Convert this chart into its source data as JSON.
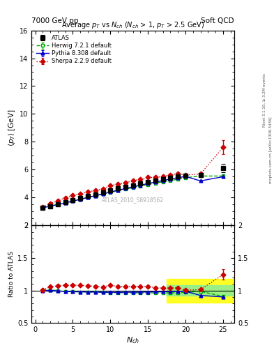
{
  "title_top_left": "7000 GeV pp",
  "title_top_right": "Soft QCD",
  "right_label_top": "Rivet 3.1.10, ≥ 3.2M events",
  "right_label_bottom": "mcplots.cern.ch [arXiv:1306.3436]",
  "plot_title": "Average $p_T$ vs $N_{ch}$ ($N_{ch}$ > 1, $p_T$ > 2.5 GeV)",
  "watermark": "ATLAS_2010_S8918562",
  "ylabel_main": "$\\langle p_T \\rangle$ [GeV]",
  "ylabel_ratio": "Ratio to ATLAS",
  "xlabel": "$N_{ch}$",
  "ylim_main": [
    2,
    16
  ],
  "ylim_ratio": [
    0.5,
    2.0
  ],
  "xlim": [
    -0.5,
    26.5
  ],
  "atlas_x": [
    1,
    2,
    3,
    4,
    5,
    6,
    7,
    8,
    9,
    10,
    11,
    12,
    13,
    14,
    15,
    16,
    17,
    18,
    19,
    20,
    22,
    25
  ],
  "atlas_y": [
    3.28,
    3.37,
    3.52,
    3.68,
    3.82,
    3.96,
    4.1,
    4.24,
    4.38,
    4.52,
    4.65,
    4.77,
    4.89,
    5.01,
    5.12,
    5.22,
    5.32,
    5.41,
    5.5,
    5.58,
    5.62,
    6.1
  ],
  "atlas_yerr": [
    0.05,
    0.04,
    0.04,
    0.04,
    0.04,
    0.04,
    0.04,
    0.04,
    0.04,
    0.05,
    0.05,
    0.05,
    0.05,
    0.06,
    0.06,
    0.06,
    0.07,
    0.07,
    0.08,
    0.09,
    0.12,
    0.3
  ],
  "herwig_x": [
    1,
    2,
    3,
    4,
    5,
    6,
    7,
    8,
    9,
    10,
    11,
    12,
    13,
    14,
    15,
    16,
    17,
    18,
    19,
    20,
    22,
    25
  ],
  "herwig_y": [
    3.3,
    3.4,
    3.52,
    3.62,
    3.76,
    3.88,
    4.02,
    4.14,
    4.25,
    4.38,
    4.5,
    4.61,
    4.72,
    4.83,
    4.94,
    5.04,
    5.13,
    5.22,
    5.32,
    5.43,
    5.55,
    5.55
  ],
  "herwig_yerr": [
    0.02,
    0.02,
    0.02,
    0.02,
    0.02,
    0.02,
    0.02,
    0.02,
    0.02,
    0.02,
    0.02,
    0.02,
    0.02,
    0.02,
    0.02,
    0.02,
    0.02,
    0.02,
    0.02,
    0.02,
    0.03,
    0.04
  ],
  "pythia_x": [
    1,
    2,
    3,
    4,
    5,
    6,
    7,
    8,
    9,
    10,
    11,
    12,
    13,
    14,
    15,
    16,
    17,
    18,
    19,
    20,
    22,
    25
  ],
  "pythia_y": [
    3.28,
    3.38,
    3.5,
    3.62,
    3.75,
    3.88,
    4.01,
    4.14,
    4.27,
    4.4,
    4.53,
    4.65,
    4.77,
    4.89,
    5.01,
    5.12,
    5.22,
    5.33,
    5.43,
    5.52,
    5.2,
    5.5
  ],
  "pythia_yerr": [
    0.02,
    0.02,
    0.02,
    0.02,
    0.02,
    0.02,
    0.02,
    0.02,
    0.02,
    0.02,
    0.02,
    0.02,
    0.02,
    0.02,
    0.02,
    0.02,
    0.02,
    0.02,
    0.02,
    0.02,
    0.05,
    0.08
  ],
  "sherpa_x": [
    1,
    2,
    3,
    4,
    5,
    6,
    7,
    8,
    9,
    10,
    11,
    12,
    13,
    14,
    15,
    16,
    17,
    18,
    19,
    20,
    22,
    25
  ],
  "sherpa_y": [
    3.32,
    3.56,
    3.78,
    3.98,
    4.15,
    4.28,
    4.4,
    4.52,
    4.62,
    4.88,
    4.95,
    5.08,
    5.2,
    5.33,
    5.45,
    5.45,
    5.52,
    5.63,
    5.72,
    5.62,
    5.7,
    7.6
  ],
  "sherpa_yerr": [
    0.05,
    0.05,
    0.05,
    0.05,
    0.05,
    0.05,
    0.05,
    0.05,
    0.05,
    0.05,
    0.05,
    0.05,
    0.05,
    0.05,
    0.05,
    0.05,
    0.06,
    0.06,
    0.06,
    0.07,
    0.1,
    0.5
  ],
  "atlas_color": "#000000",
  "herwig_color": "#00aa00",
  "pythia_color": "#0000cc",
  "sherpa_color": "#cc0000",
  "band_yellow_lo": 0.82,
  "band_yellow_hi": 1.18,
  "band_green_lo": 0.92,
  "band_green_hi": 1.08,
  "band_x_start": 17.5,
  "band_x_end": 26.5
}
